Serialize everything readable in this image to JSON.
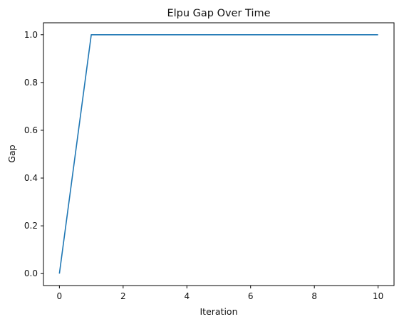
{
  "chart_data": {
    "type": "line",
    "title": "Elpu Gap Over Time",
    "xlabel": "Iteration",
    "ylabel": "Gap",
    "xlim": [
      -0.5,
      10.5
    ],
    "ylim": [
      -0.05,
      1.05
    ],
    "xticks": [
      0,
      2,
      4,
      6,
      8,
      10
    ],
    "xtick_labels": [
      "0",
      "2",
      "4",
      "6",
      "8",
      "10"
    ],
    "yticks": [
      0.0,
      0.2,
      0.4,
      0.6,
      0.8,
      1.0
    ],
    "ytick_labels": [
      "0.0",
      "0.2",
      "0.4",
      "0.6",
      "0.8",
      "1.0"
    ],
    "grid": false,
    "series": [
      {
        "color": "#1f77b4",
        "x": [
          0,
          1,
          2,
          3,
          4,
          5,
          6,
          7,
          8,
          9,
          10
        ],
        "y": [
          0.0,
          1.0,
          1.0,
          1.0,
          1.0,
          1.0,
          1.0,
          1.0,
          1.0,
          1.0,
          1.0
        ]
      }
    ]
  }
}
